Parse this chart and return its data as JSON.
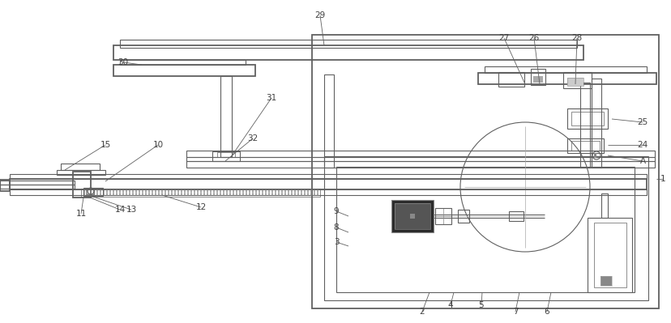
{
  "bg_color": "#ffffff",
  "line_color": "#606060",
  "lw": 0.8,
  "lw2": 1.3,
  "lw3": 0.5
}
